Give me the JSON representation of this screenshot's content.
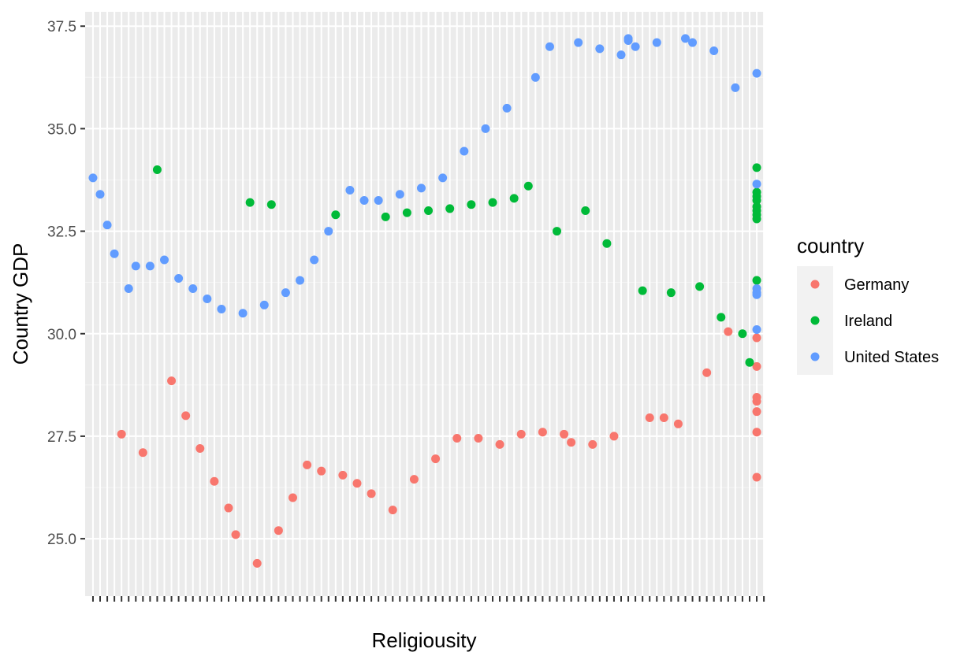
{
  "chart_data": {
    "type": "scatter",
    "xlabel": "Religiousity",
    "ylabel": "Country GDP",
    "xlabel_note": "discrete x axis; ~95 overlapping category tick labels render as an illegible smear",
    "ylim": [
      23.6,
      37.85
    ],
    "yticks": [
      "25.0",
      "27.5",
      "30.0",
      "32.5",
      "35.0",
      "37.5"
    ],
    "grid": true,
    "legend": {
      "title": "country",
      "placement": "right",
      "entries": [
        "Germany",
        "Ireland",
        "United States"
      ]
    },
    "colors": {
      "Germany": "#F8766D",
      "Ireland": "#00BA38",
      "United States": "#619CFF"
    },
    "x_categories_count": 95,
    "series": [
      {
        "name": "Germany",
        "points": [
          {
            "x": 5,
            "y": 27.55
          },
          {
            "x": 8,
            "y": 27.1
          },
          {
            "x": 12,
            "y": 28.85
          },
          {
            "x": 14,
            "y": 28.0
          },
          {
            "x": 16,
            "y": 27.2
          },
          {
            "x": 18,
            "y": 26.4
          },
          {
            "x": 20,
            "y": 25.75
          },
          {
            "x": 21,
            "y": 25.1
          },
          {
            "x": 24,
            "y": 24.4
          },
          {
            "x": 27,
            "y": 25.2
          },
          {
            "x": 29,
            "y": 26.0
          },
          {
            "x": 31,
            "y": 26.8
          },
          {
            "x": 33,
            "y": 26.65
          },
          {
            "x": 36,
            "y": 26.55
          },
          {
            "x": 38,
            "y": 26.35
          },
          {
            "x": 40,
            "y": 26.1
          },
          {
            "x": 43,
            "y": 25.7
          },
          {
            "x": 46,
            "y": 26.45
          },
          {
            "x": 49,
            "y": 26.95
          },
          {
            "x": 52,
            "y": 27.45
          },
          {
            "x": 55,
            "y": 27.45
          },
          {
            "x": 58,
            "y": 27.3
          },
          {
            "x": 61,
            "y": 27.55
          },
          {
            "x": 64,
            "y": 27.6
          },
          {
            "x": 67,
            "y": 27.55
          },
          {
            "x": 68,
            "y": 27.35
          },
          {
            "x": 71,
            "y": 27.3
          },
          {
            "x": 74,
            "y": 27.5
          },
          {
            "x": 79,
            "y": 27.95
          },
          {
            "x": 81,
            "y": 27.95
          },
          {
            "x": 83,
            "y": 27.8
          },
          {
            "x": 87,
            "y": 29.05
          },
          {
            "x": 90,
            "y": 30.05
          },
          {
            "x": 94,
            "y": 29.9
          },
          {
            "x": 94,
            "y": 29.2
          },
          {
            "x": 94,
            "y": 28.45
          },
          {
            "x": 94,
            "y": 28.35
          },
          {
            "x": 94,
            "y": 28.1
          },
          {
            "x": 94,
            "y": 27.6
          },
          {
            "x": 94,
            "y": 26.5
          }
        ]
      },
      {
        "name": "Ireland",
        "points": [
          {
            "x": 10,
            "y": 34.0
          },
          {
            "x": 23,
            "y": 33.2
          },
          {
            "x": 26,
            "y": 33.15
          },
          {
            "x": 35,
            "y": 32.9
          },
          {
            "x": 42,
            "y": 32.85
          },
          {
            "x": 45,
            "y": 32.95
          },
          {
            "x": 48,
            "y": 33.0
          },
          {
            "x": 51,
            "y": 33.05
          },
          {
            "x": 54,
            "y": 33.15
          },
          {
            "x": 57,
            "y": 33.2
          },
          {
            "x": 60,
            "y": 33.3
          },
          {
            "x": 62,
            "y": 33.6
          },
          {
            "x": 66,
            "y": 32.5
          },
          {
            "x": 70,
            "y": 33.0
          },
          {
            "x": 73,
            "y": 32.2
          },
          {
            "x": 78,
            "y": 31.05
          },
          {
            "x": 82,
            "y": 31.0
          },
          {
            "x": 86,
            "y": 31.15
          },
          {
            "x": 89,
            "y": 30.4
          },
          {
            "x": 92,
            "y": 30.0
          },
          {
            "x": 93,
            "y": 29.3
          },
          {
            "x": 94,
            "y": 34.05
          },
          {
            "x": 94,
            "y": 33.45
          },
          {
            "x": 94,
            "y": 33.35
          },
          {
            "x": 94,
            "y": 33.25
          },
          {
            "x": 94,
            "y": 33.1
          },
          {
            "x": 94,
            "y": 33.0
          },
          {
            "x": 94,
            "y": 32.9
          },
          {
            "x": 94,
            "y": 32.8
          },
          {
            "x": 94,
            "y": 31.3
          }
        ]
      },
      {
        "name": "United States",
        "points": [
          {
            "x": 1,
            "y": 33.8
          },
          {
            "x": 2,
            "y": 33.4
          },
          {
            "x": 3,
            "y": 32.65
          },
          {
            "x": 4,
            "y": 31.95
          },
          {
            "x": 6,
            "y": 31.1
          },
          {
            "x": 7,
            "y": 31.65
          },
          {
            "x": 9,
            "y": 31.65
          },
          {
            "x": 11,
            "y": 31.8
          },
          {
            "x": 13,
            "y": 31.35
          },
          {
            "x": 15,
            "y": 31.1
          },
          {
            "x": 17,
            "y": 30.85
          },
          {
            "x": 19,
            "y": 30.6
          },
          {
            "x": 22,
            "y": 30.5
          },
          {
            "x": 25,
            "y": 30.7
          },
          {
            "x": 28,
            "y": 31.0
          },
          {
            "x": 30,
            "y": 31.3
          },
          {
            "x": 32,
            "y": 31.8
          },
          {
            "x": 34,
            "y": 32.5
          },
          {
            "x": 37,
            "y": 33.5
          },
          {
            "x": 39,
            "y": 33.25
          },
          {
            "x": 41,
            "y": 33.25
          },
          {
            "x": 44,
            "y": 33.4
          },
          {
            "x": 47,
            "y": 33.55
          },
          {
            "x": 50,
            "y": 33.8
          },
          {
            "x": 53,
            "y": 34.45
          },
          {
            "x": 56,
            "y": 35.0
          },
          {
            "x": 59,
            "y": 35.5
          },
          {
            "x": 63,
            "y": 36.25
          },
          {
            "x": 65,
            "y": 37.0
          },
          {
            "x": 69,
            "y": 37.1
          },
          {
            "x": 72,
            "y": 36.95
          },
          {
            "x": 75,
            "y": 36.8
          },
          {
            "x": 76,
            "y": 37.2
          },
          {
            "x": 76,
            "y": 37.15
          },
          {
            "x": 77,
            "y": 37.0
          },
          {
            "x": 80,
            "y": 37.1
          },
          {
            "x": 84,
            "y": 37.2
          },
          {
            "x": 85,
            "y": 37.1
          },
          {
            "x": 88,
            "y": 36.9
          },
          {
            "x": 91,
            "y": 36.0
          },
          {
            "x": 94,
            "y": 36.35
          },
          {
            "x": 94,
            "y": 33.65
          },
          {
            "x": 94,
            "y": 31.1
          },
          {
            "x": 94,
            "y": 31.0
          },
          {
            "x": 94,
            "y": 30.95
          },
          {
            "x": 94,
            "y": 30.1
          }
        ]
      }
    ]
  }
}
